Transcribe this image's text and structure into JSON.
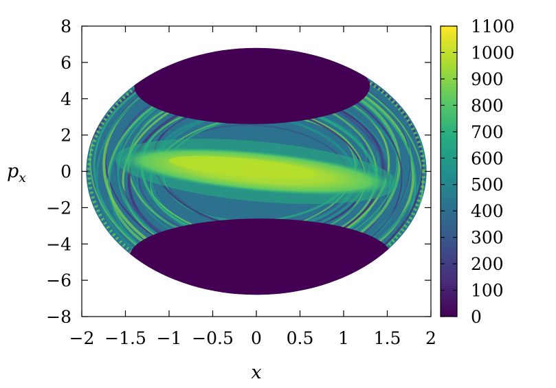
{
  "chart_data": {
    "type": "heatmap",
    "title": "",
    "xlabel": "x",
    "ylabel": {
      "main": "p",
      "sub": "x"
    },
    "xlim": [
      -2,
      2
    ],
    "ylim": [
      -8,
      8
    ],
    "xticks": [
      -2,
      -1.5,
      -1,
      -0.5,
      0,
      0.5,
      1,
      1.5,
      2
    ],
    "xtick_labels": [
      "−2",
      "−1.5",
      "−1",
      "−0.5",
      "0",
      "0.5",
      "1",
      "1.5",
      "2"
    ],
    "yticks": [
      -8,
      -6,
      -4,
      -2,
      0,
      2,
      4,
      6,
      8
    ],
    "ytick_labels": [
      "−8",
      "−6",
      "−4",
      "−2",
      "0",
      "2",
      "4",
      "6",
      "8"
    ],
    "colorbar": {
      "range": [
        0,
        1100
      ],
      "ticks": [
        0,
        100,
        200,
        300,
        400,
        500,
        600,
        700,
        800,
        900,
        1000,
        1100
      ],
      "tick_labels": [
        "0",
        "100",
        "200",
        "300",
        "400",
        "500",
        "600",
        "700",
        "800",
        "900",
        "1000",
        "1100"
      ],
      "colormap": [
        "#440154",
        "#472d7b",
        "#3b528b",
        "#2c728e",
        "#21918c",
        "#28ae80",
        "#5ec962",
        "#addc30",
        "#fde725"
      ]
    },
    "domain": {
      "x_center": 0,
      "p_center": 0,
      "x_radius": 1.95,
      "p_radius": 6.8
    },
    "regions": [
      {
        "name": "upper-island",
        "x_center": -0.05,
        "p_center": 4.7,
        "x_halfwidth": 1.35,
        "p_halfheight": 2.1,
        "value": 20
      },
      {
        "name": "lower-island",
        "x_center": 0.05,
        "p_center": -4.7,
        "x_halfwidth": 1.5,
        "p_halfheight": 2.1,
        "value": 20
      },
      {
        "name": "central-band",
        "x_center": 0,
        "p_center": 0,
        "x_halfwidth": 1.55,
        "p_halfheight": 1.1,
        "tilt_p_per_x": -0.45,
        "value": 950
      }
    ]
  }
}
